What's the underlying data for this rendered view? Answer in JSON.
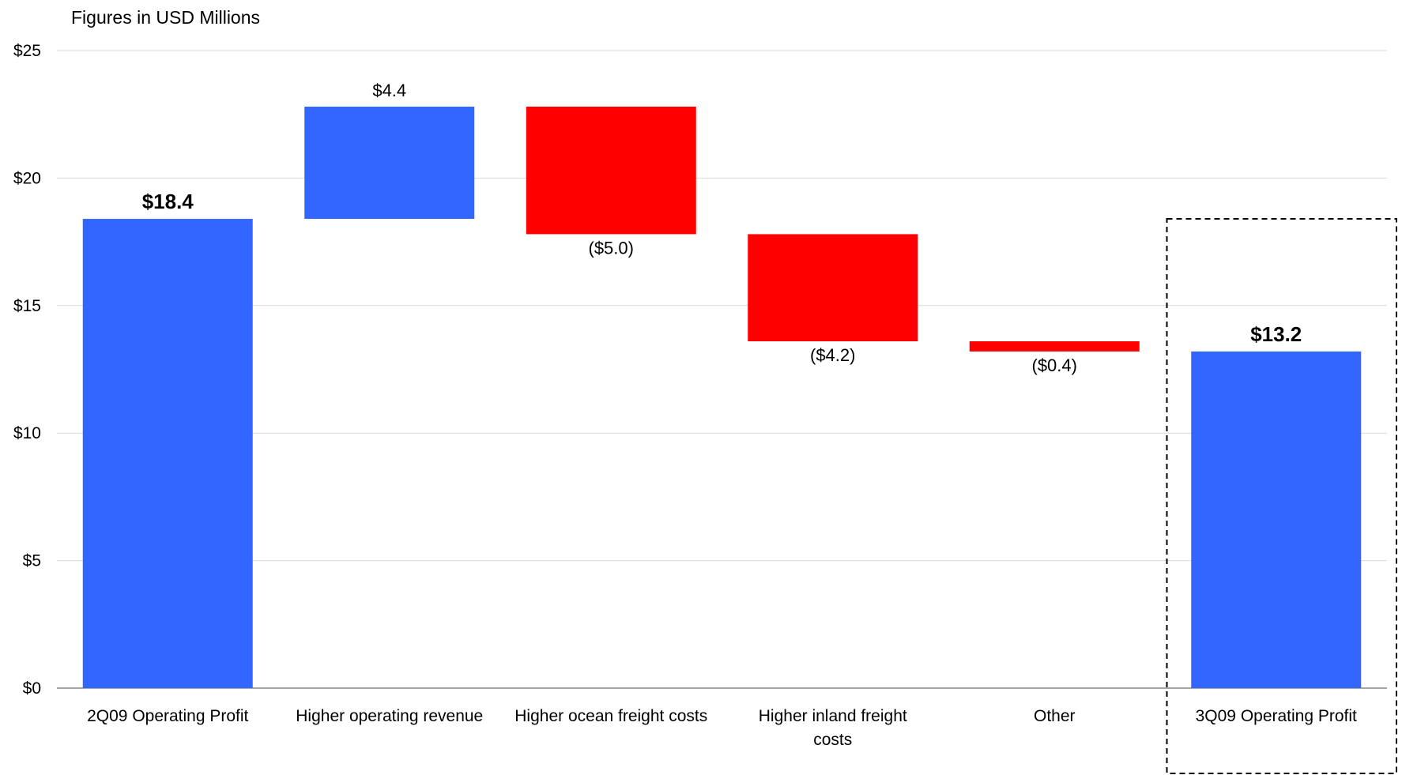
{
  "chart_data": {
    "type": "bar",
    "subtype": "waterfall",
    "subtitle": "Figures in USD Millions",
    "categories": [
      "2Q09 Operating Profit",
      "Higher operating revenue",
      "Higher ocean freight costs",
      "Higher inland freight costs",
      "Other",
      "3Q09 Operating Profit"
    ],
    "steps": [
      {
        "kind": "total",
        "value": 18.4,
        "label": "$18.4",
        "color": "#3366FF"
      },
      {
        "kind": "delta",
        "value": 4.4,
        "label": "$4.4",
        "color": "#3366FF"
      },
      {
        "kind": "delta",
        "value": -5.0,
        "label": "($5.0)",
        "color": "#FF0000"
      },
      {
        "kind": "delta",
        "value": -4.2,
        "label": "($4.2)",
        "color": "#FF0000"
      },
      {
        "kind": "delta",
        "value": -0.4,
        "label": "($0.4)",
        "color": "#FF0000"
      },
      {
        "kind": "total",
        "value": 13.2,
        "label": "$13.2",
        "color": "#3366FF"
      }
    ],
    "y_ticks": [
      "$0",
      "$5",
      "$10",
      "$15",
      "$20",
      "$25"
    ],
    "ylim": [
      0,
      25
    ],
    "grid": true,
    "highlight": "3Q09 Operating Profit"
  }
}
